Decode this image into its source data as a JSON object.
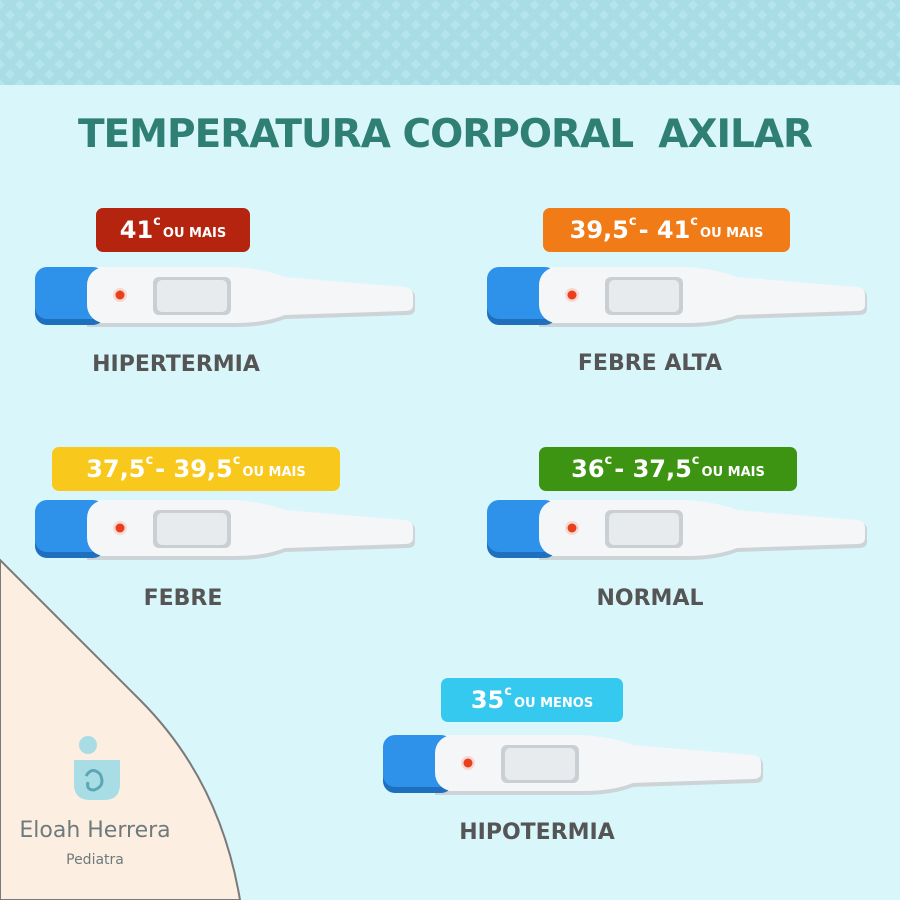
{
  "title": "TEMPERATURA CORPORAL  AXILAR",
  "items": [
    {
      "badge": [
        "41",
        "c",
        "OU MAIS"
      ],
      "label": "HIPERTERMIA"
    },
    {
      "badge": [
        "39,5",
        "c",
        "- 41",
        "c",
        "OU MAIS"
      ],
      "label": "FEBRE ALTA"
    },
    {
      "badge": [
        "37,5",
        "c",
        "- 39,5",
        "c",
        "OU MAIS"
      ],
      "label": "FEBRE"
    },
    {
      "badge": [
        "36",
        "c",
        "- 37,5",
        "c",
        "OU MAIS"
      ],
      "label": "NORMAL"
    },
    {
      "badge": [
        "35",
        "c",
        "OU MENOS"
      ],
      "label": "HIPOTERMIA"
    }
  ],
  "brand": {
    "name": "Eloah Herrera",
    "role": "Pediatra"
  }
}
